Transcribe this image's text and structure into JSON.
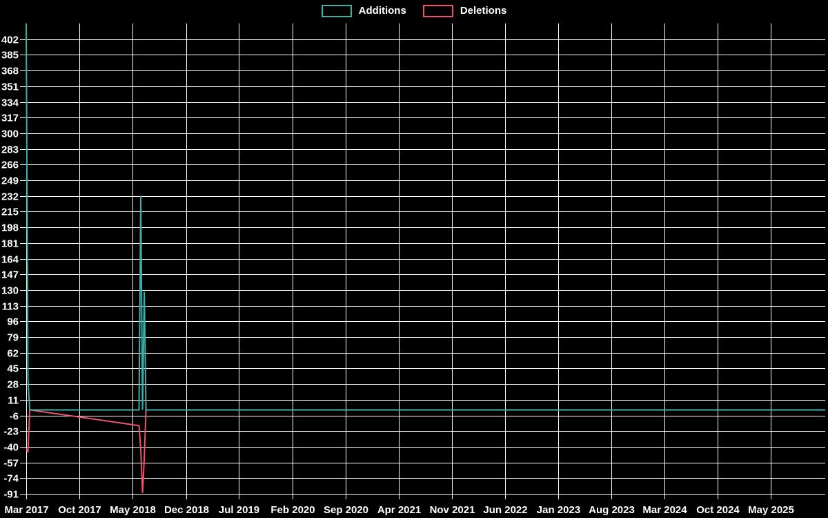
{
  "chart_data": {
    "type": "line",
    "title": "",
    "legend_position": "top",
    "grid": true,
    "background": "#000000",
    "grid_color": "#ffffff",
    "text_color": "#ffffff",
    "x_min": "2017-03-01",
    "x_max": "2025-12-05",
    "y_min": -91,
    "y_max": 419,
    "y_ticks": [
      402,
      385,
      368,
      351,
      334,
      317,
      300,
      283,
      266,
      249,
      232,
      215,
      198,
      181,
      164,
      147,
      130,
      113,
      96,
      79,
      62,
      45,
      28,
      11,
      -6,
      -23,
      -40,
      -57,
      -74,
      -91
    ],
    "x_ticks": [
      "Mar 2017",
      "Oct 2017",
      "May 2018",
      "Dec 2018",
      "Jul 2019",
      "Feb 2020",
      "Sep 2020",
      "Apr 2021",
      "Nov 2021",
      "Jun 2022",
      "Jan 2023",
      "Aug 2023",
      "Mar 2024",
      "Oct 2024",
      "May 2025"
    ],
    "x_tick_dates": [
      "2017-03-01",
      "2017-10-01",
      "2018-05-01",
      "2018-12-01",
      "2019-07-01",
      "2020-02-01",
      "2020-09-01",
      "2021-04-01",
      "2021-11-01",
      "2022-06-01",
      "2023-01-01",
      "2023-08-01",
      "2024-03-01",
      "2024-10-01",
      "2025-05-01"
    ],
    "series": [
      {
        "name": "Additions",
        "color": "#3bafa8",
        "points": [
          [
            "2017-03-01",
            419
          ],
          [
            "2017-03-08",
            33
          ],
          [
            "2017-03-15",
            0
          ],
          [
            "2018-05-27",
            0
          ],
          [
            "2018-06-03",
            232
          ],
          [
            "2018-06-10",
            0
          ],
          [
            "2018-06-17",
            128
          ],
          [
            "2018-06-24",
            0
          ],
          [
            "2025-12-05",
            0
          ]
        ]
      },
      {
        "name": "Deletions",
        "color": "#f0526e",
        "points": [
          [
            "2017-03-01",
            -42
          ],
          [
            "2017-03-08",
            -45
          ],
          [
            "2017-03-15",
            0
          ],
          [
            "2018-05-27",
            -17
          ],
          [
            "2018-06-03",
            -43
          ],
          [
            "2018-06-10",
            -90
          ],
          [
            "2018-06-17",
            -52
          ],
          [
            "2018-06-24",
            0
          ],
          [
            "2025-12-05",
            0
          ]
        ]
      }
    ]
  }
}
